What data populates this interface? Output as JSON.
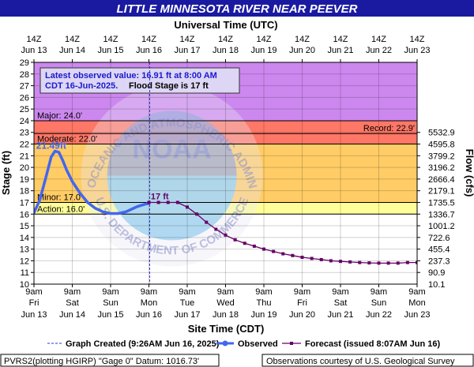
{
  "chart_data": {
    "type": "line",
    "title": "LITTLE MINNESOTA RIVER NEAR PEEVER",
    "top_axis_label": "Universal Time (UTC)",
    "top_ticks": [
      {
        "l1": "14Z",
        "l2": "Jun 13"
      },
      {
        "l1": "14Z",
        "l2": "Jun 14"
      },
      {
        "l1": "14Z",
        "l2": "Jun 15"
      },
      {
        "l1": "14Z",
        "l2": "Jun 16"
      },
      {
        "l1": "14Z",
        "l2": "Jun 17"
      },
      {
        "l1": "14Z",
        "l2": "Jun 18"
      },
      {
        "l1": "14Z",
        "l2": "Jun 19"
      },
      {
        "l1": "14Z",
        "l2": "Jun 20"
      },
      {
        "l1": "14Z",
        "l2": "Jun 21"
      },
      {
        "l1": "14Z",
        "l2": "Jun 22"
      },
      {
        "l1": "14Z",
        "l2": "Jun 23"
      }
    ],
    "xlabel": "Site Time (CDT)",
    "bottom_ticks": [
      {
        "l1": "9am",
        "l2": "Fri",
        "l3": "Jun 13"
      },
      {
        "l1": "9am",
        "l2": "Sat",
        "l3": "Jun 14"
      },
      {
        "l1": "9am",
        "l2": "Sun",
        "l3": "Jun 15"
      },
      {
        "l1": "9am",
        "l2": "Mon",
        "l3": "Jun 16"
      },
      {
        "l1": "9am",
        "l2": "Tue",
        "l3": "Jun 17"
      },
      {
        "l1": "9am",
        "l2": "Wed",
        "l3": "Jun 18"
      },
      {
        "l1": "9am",
        "l2": "Thu",
        "l3": "Jun 19"
      },
      {
        "l1": "9am",
        "l2": "Fri",
        "l3": "Jun 20"
      },
      {
        "l1": "9am",
        "l2": "Sat",
        "l3": "Jun 21"
      },
      {
        "l1": "9am",
        "l2": "Sun",
        "l3": "Jun 22"
      },
      {
        "l1": "9am",
        "l2": "Mon",
        "l3": "Jun 23"
      }
    ],
    "ylabel": "Stage (ft)",
    "ylim": [
      10,
      29
    ],
    "yticks": [
      10,
      11,
      12,
      13,
      14,
      15,
      16,
      17,
      18,
      19,
      20,
      21,
      22,
      23,
      24,
      25,
      26,
      27,
      28,
      29
    ],
    "y2label": "Flow (cfs)",
    "flow_ticks": [
      {
        "stage": 11,
        "label": "90.9"
      },
      {
        "stage": 12,
        "label": "237.3"
      },
      {
        "stage": 13,
        "label": "455.4"
      },
      {
        "stage": 14,
        "label": "722.6"
      },
      {
        "stage": 15,
        "label": "1001.2"
      },
      {
        "stage": 16,
        "label": "1336.7"
      },
      {
        "stage": 17,
        "label": "1735.5"
      },
      {
        "stage": 18,
        "label": "2179.1"
      },
      {
        "stage": 19,
        "label": "2666.4"
      },
      {
        "stage": 20,
        "label": "3196.2"
      },
      {
        "stage": 21,
        "label": "3799.2"
      },
      {
        "stage": 22,
        "label": "4595.8"
      },
      {
        "stage": 23,
        "label": "5532.9"
      }
    ],
    "flow_extra_label": "10.1",
    "bands": [
      {
        "from": 10,
        "to": 16,
        "color": "#ffffff"
      },
      {
        "from": 16,
        "to": 17,
        "color": "#ffff99"
      },
      {
        "from": 17,
        "to": 22,
        "color": "#ffcc66"
      },
      {
        "from": 22,
        "to": 24,
        "color": "#ff7766"
      },
      {
        "from": 24,
        "to": 29,
        "color": "#cc88ee"
      }
    ],
    "thresholds": [
      {
        "name": "Major: 24.0'",
        "value": 24,
        "side": "left"
      },
      {
        "name": "Moderate: 22.0'",
        "value": 22,
        "side": "left"
      },
      {
        "name": "Minor: 17.0'",
        "value": 17,
        "side": "left"
      },
      {
        "name": "Action: 16.0'",
        "value": 16,
        "side": "left"
      },
      {
        "name": "Record: 22.9'",
        "value": 22.9,
        "side": "right"
      }
    ],
    "annotation": {
      "line1": "Latest observed value: 16.91 ft at 8:00 AM",
      "line2a": "CDT 16-Jun-2025.",
      "line2b": "Flood Stage is 17 ft"
    },
    "peak_label": "21.49ft",
    "forecast_peak_label": "17 ft",
    "created_label": "Graph Created (9:26AM Jun 16, 2025)",
    "series": [
      {
        "name": "Observed",
        "color": "#4466ee",
        "x": [
          0,
          0.15,
          0.3,
          0.45,
          0.55,
          0.65,
          0.75,
          0.85,
          1.0,
          1.2,
          1.4,
          1.6,
          1.8,
          2.0,
          2.2,
          2.4,
          2.5,
          2.6,
          2.7,
          2.8,
          2.9,
          3.0
        ],
        "y": [
          16.1,
          17.2,
          19.0,
          20.9,
          21.4,
          21.3,
          20.6,
          19.8,
          18.8,
          17.8,
          17.0,
          16.5,
          16.2,
          16.05,
          16.05,
          16.2,
          16.35,
          16.5,
          16.65,
          16.75,
          16.85,
          16.91
        ]
      },
      {
        "name": "Forecast (issued 8:07AM Jun 16)",
        "color": "#660066",
        "x": [
          3.0,
          3.25,
          3.5,
          3.75,
          4.0,
          4.25,
          4.5,
          4.75,
          5.0,
          5.25,
          5.5,
          5.75,
          6.0,
          6.25,
          6.5,
          6.75,
          7.0,
          7.25,
          7.5,
          7.75,
          8.0,
          8.25,
          8.5,
          8.75,
          9.0,
          9.25,
          9.5,
          9.75,
          10.0
        ],
        "y": [
          17.0,
          17.0,
          17.0,
          17.0,
          16.6,
          16.0,
          15.3,
          14.7,
          14.2,
          13.8,
          13.5,
          13.25,
          13.0,
          12.8,
          12.6,
          12.45,
          12.3,
          12.2,
          12.1,
          12.0,
          11.95,
          11.9,
          11.85,
          11.82,
          11.8,
          11.8,
          11.8,
          11.85,
          11.85
        ]
      }
    ],
    "legend": {
      "created": "Graph Created (9:26AM Jun 16, 2025)",
      "observed": "Observed",
      "forecast": "Forecast (issued 8:07AM Jun 16)"
    },
    "footer": {
      "left": "PVRS2(plotting HGIRP) \"Gage 0\" Datum: 1016.73'",
      "right": "Observations courtesy of U.S. Geological Survey"
    },
    "watermark": {
      "top_text": "NATIONAL OCEANIC AND ATMOSPHERIC ADMINISTRATION",
      "center_text": "NOAA",
      "bottom_text": "U.S. DEPARTMENT OF COMMERCE"
    }
  }
}
